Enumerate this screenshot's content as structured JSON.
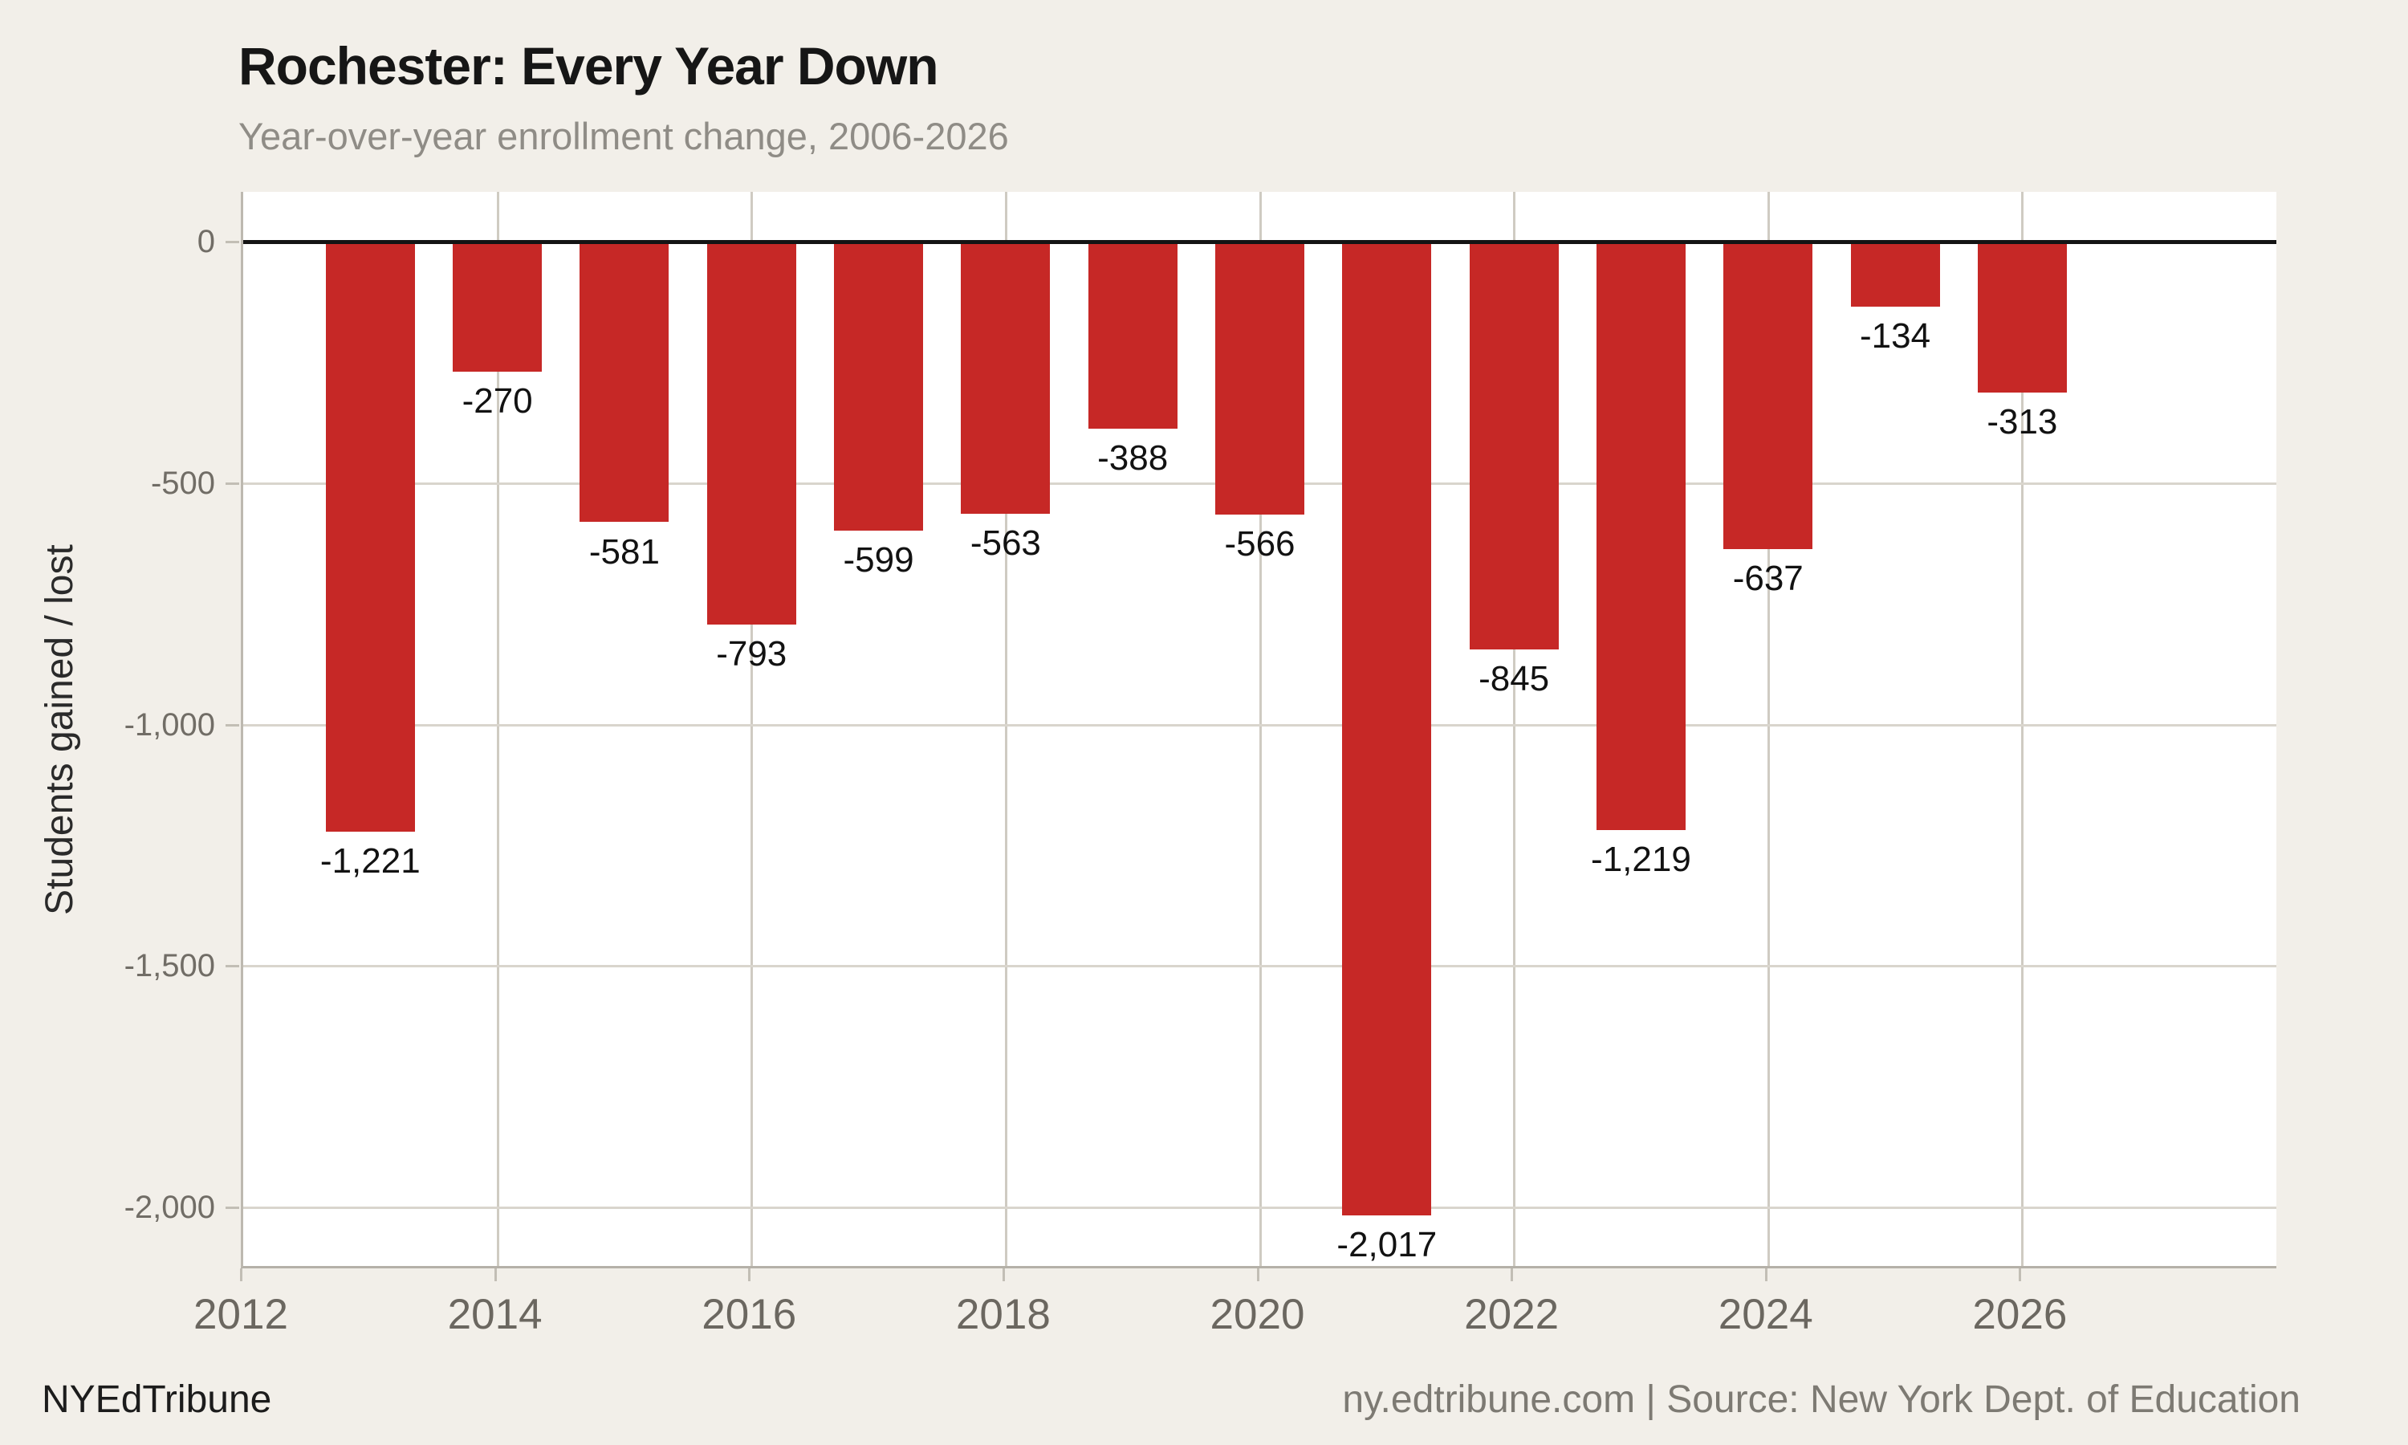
{
  "page": {
    "background": "#f2efe9",
    "brand": "NYEdTribune",
    "credit": "ny.edtribune.com | Source: New York Dept. of Education"
  },
  "chart_data": {
    "type": "bar",
    "title": "Rochester: Every Year Down",
    "subtitle": "Year-over-year enrollment change, 2006-2026",
    "xlabel": "",
    "ylabel": "Students gained / lost",
    "bar_color": "#c62826",
    "zero_line_color": "#141414",
    "grid": true,
    "legend_position": "none",
    "x_range": [
      2012,
      2028
    ],
    "y_range": [
      103,
      -2121
    ],
    "x_ticks": [
      2012,
      2014,
      2016,
      2018,
      2020,
      2022,
      2024,
      2026
    ],
    "v_gridline_years": [
      2014,
      2016,
      2018,
      2020,
      2022,
      2024,
      2026
    ],
    "y_ticks": [
      {
        "value": 0,
        "label": "0"
      },
      {
        "value": -500,
        "label": "-500"
      },
      {
        "value": -1000,
        "label": "-1,000"
      },
      {
        "value": -1500,
        "label": "-1,500"
      },
      {
        "value": -2000,
        "label": "-2,000"
      }
    ],
    "points": [
      {
        "year": 2013,
        "value": -1221,
        "label": "-1,221"
      },
      {
        "year": 2014,
        "value": -270,
        "label": "-270"
      },
      {
        "year": 2015,
        "value": -581,
        "label": "-581"
      },
      {
        "year": 2016,
        "value": -793,
        "label": "-793"
      },
      {
        "year": 2017,
        "value": -599,
        "label": "-599"
      },
      {
        "year": 2018,
        "value": -563,
        "label": "-563"
      },
      {
        "year": 2019,
        "value": -388,
        "label": "-388"
      },
      {
        "year": 2020,
        "value": -566,
        "label": "-566"
      },
      {
        "year": 2021,
        "value": -2017,
        "label": "-2,017"
      },
      {
        "year": 2022,
        "value": -845,
        "label": "-845"
      },
      {
        "year": 2023,
        "value": -1219,
        "label": "-1,219"
      },
      {
        "year": 2024,
        "value": -637,
        "label": "-637"
      },
      {
        "year": 2025,
        "value": -134,
        "label": "-134"
      },
      {
        "year": 2026,
        "value": -313,
        "label": "-313"
      }
    ]
  }
}
